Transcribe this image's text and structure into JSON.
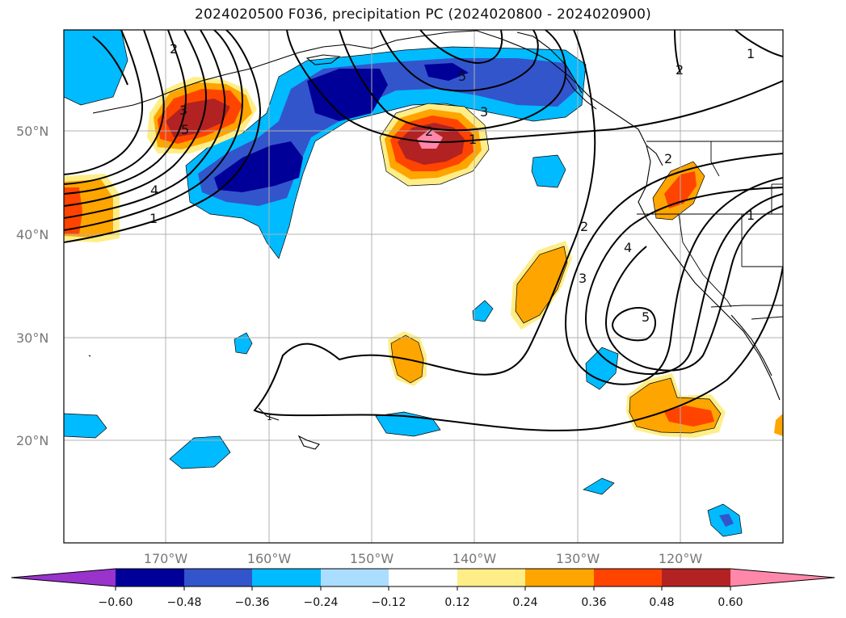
{
  "title": "2024020500 F036, precipitation PC (2024020800 - 2024020900)",
  "lat_labels": [
    "50°N",
    "40°N",
    "30°N",
    "20°N"
  ],
  "lon_labels": [
    "170°W",
    "160°W",
    "150°W",
    "140°W",
    "130°W",
    "120°W"
  ],
  "colorbar": {
    "labels": [
      "−0.60",
      "−0.48",
      "−0.36",
      "−0.24",
      "−0.12",
      "0.12",
      "0.24",
      "0.36",
      "0.48",
      "0.60"
    ],
    "colors": {
      "under": "#9933cc",
      "b1": "#000099",
      "b2": "#3355cc",
      "b3": "#00bbff",
      "b4": "#aaddff",
      "neutral": "#ffffff",
      "p1": "#ffee88",
      "p2": "#ffa500",
      "p3": "#ff4400",
      "p4": "#b22222",
      "over": "#ff88aa"
    }
  },
  "contour_labels": [
    "2",
    "3",
    "5",
    "4",
    "1",
    "2",
    "1",
    "3",
    "5",
    "2",
    "2",
    "3",
    "4",
    "5",
    "1",
    "2",
    "1",
    "1"
  ]
}
